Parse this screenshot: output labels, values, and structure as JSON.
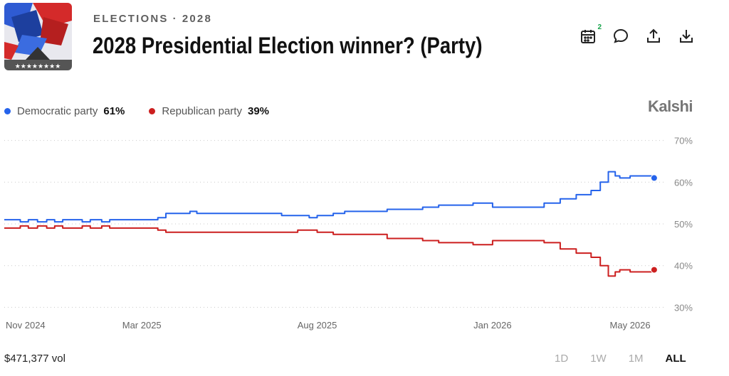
{
  "header": {
    "category": "ELECTIONS",
    "separator": "·",
    "year": "2028",
    "title": "2028 Presidential Election winner? (Party)",
    "calendar_badge": "2"
  },
  "actions": [
    {
      "icon": "calendar-icon"
    },
    {
      "icon": "comment-icon"
    },
    {
      "icon": "share-icon"
    },
    {
      "icon": "download-icon"
    }
  ],
  "brand": "Kalshi",
  "legend": [
    {
      "name": "Democratic party",
      "value": "61%",
      "color": "#2563eb"
    },
    {
      "name": "Republican party",
      "value": "39%",
      "color": "#cc1f1f"
    }
  ],
  "volume": "$471,377 vol",
  "ranges": [
    {
      "label": "1D",
      "active": false
    },
    {
      "label": "1W",
      "active": false
    },
    {
      "label": "1M",
      "active": false
    },
    {
      "label": "ALL",
      "active": true
    }
  ],
  "chart_data": {
    "type": "line",
    "xlabel": "",
    "ylabel": "",
    "xlim": [
      "2024-11-01",
      "2026-06-01"
    ],
    "ylim": [
      27,
      73
    ],
    "x_ticks": [
      {
        "label": "Nov 2024",
        "date": "2024-11-01"
      },
      {
        "label": "Mar 2025",
        "date": "2025-03-01"
      },
      {
        "label": "Aug 2025",
        "date": "2025-08-01"
      },
      {
        "label": "Jan 2026",
        "date": "2026-01-01"
      },
      {
        "label": "May 2026",
        "date": "2026-05-01"
      }
    ],
    "y_ticks": [
      {
        "label": "70%",
        "value": 70
      },
      {
        "label": "60%",
        "value": 60
      },
      {
        "label": "50%",
        "value": 50
      },
      {
        "label": "40%",
        "value": 40
      },
      {
        "label": "30%",
        "value": 30
      }
    ],
    "grid": true,
    "series": [
      {
        "name": "Democratic party",
        "color": "#2563eb",
        "points": [
          [
            "2024-11-01",
            51
          ],
          [
            "2024-11-10",
            51
          ],
          [
            "2024-11-15",
            50.5
          ],
          [
            "2024-11-22",
            51
          ],
          [
            "2024-11-30",
            50.5
          ],
          [
            "2024-12-08",
            51
          ],
          [
            "2024-12-15",
            50.5
          ],
          [
            "2024-12-22",
            51
          ],
          [
            "2024-12-31",
            51
          ],
          [
            "2025-01-08",
            50.5
          ],
          [
            "2025-01-15",
            51
          ],
          [
            "2025-01-25",
            50.5
          ],
          [
            "2025-02-01",
            51
          ],
          [
            "2025-02-15",
            51
          ],
          [
            "2025-02-28",
            51
          ],
          [
            "2025-03-08",
            51
          ],
          [
            "2025-03-15",
            51.5
          ],
          [
            "2025-03-22",
            52.5
          ],
          [
            "2025-04-08",
            52.5
          ],
          [
            "2025-04-12",
            53
          ],
          [
            "2025-04-18",
            52.5
          ],
          [
            "2025-05-10",
            52.5
          ],
          [
            "2025-06-01",
            52.5
          ],
          [
            "2025-06-15",
            52.5
          ],
          [
            "2025-07-01",
            52
          ],
          [
            "2025-07-15",
            52
          ],
          [
            "2025-07-25",
            51.5
          ],
          [
            "2025-08-01",
            52
          ],
          [
            "2025-08-15",
            52.5
          ],
          [
            "2025-08-25",
            53
          ],
          [
            "2025-09-15",
            53
          ],
          [
            "2025-10-01",
            53.5
          ],
          [
            "2025-10-15",
            53.5
          ],
          [
            "2025-11-01",
            54
          ],
          [
            "2025-11-15",
            54.5
          ],
          [
            "2025-12-01",
            54.5
          ],
          [
            "2025-12-15",
            55
          ],
          [
            "2026-01-01",
            54
          ],
          [
            "2026-01-15",
            54
          ],
          [
            "2026-02-01",
            54
          ],
          [
            "2026-02-15",
            55
          ],
          [
            "2026-03-01",
            56
          ],
          [
            "2026-03-15",
            57
          ],
          [
            "2026-03-28",
            58
          ],
          [
            "2026-04-05",
            60
          ],
          [
            "2026-04-12",
            62.5
          ],
          [
            "2026-04-18",
            61.5
          ],
          [
            "2026-04-22",
            61
          ],
          [
            "2026-05-01",
            61.5
          ],
          [
            "2026-05-10",
            61.5
          ],
          [
            "2026-05-22",
            61
          ]
        ]
      },
      {
        "name": "Republican party",
        "color": "#cc1f1f",
        "points": [
          [
            "2024-11-01",
            49
          ],
          [
            "2024-11-10",
            49
          ],
          [
            "2024-11-15",
            49.5
          ],
          [
            "2024-11-22",
            49
          ],
          [
            "2024-11-30",
            49.5
          ],
          [
            "2024-12-08",
            49
          ],
          [
            "2024-12-15",
            49.5
          ],
          [
            "2024-12-22",
            49
          ],
          [
            "2024-12-31",
            49
          ],
          [
            "2025-01-08",
            49.5
          ],
          [
            "2025-01-15",
            49
          ],
          [
            "2025-01-25",
            49.5
          ],
          [
            "2025-02-01",
            49
          ],
          [
            "2025-02-15",
            49
          ],
          [
            "2025-02-28",
            49
          ],
          [
            "2025-03-08",
            49
          ],
          [
            "2025-03-15",
            48.5
          ],
          [
            "2025-03-22",
            48
          ],
          [
            "2025-04-08",
            48
          ],
          [
            "2025-04-12",
            48
          ],
          [
            "2025-05-10",
            48
          ],
          [
            "2025-06-01",
            48
          ],
          [
            "2025-06-15",
            48
          ],
          [
            "2025-07-01",
            48
          ],
          [
            "2025-07-15",
            48.5
          ],
          [
            "2025-07-25",
            48.5
          ],
          [
            "2025-08-01",
            48
          ],
          [
            "2025-08-15",
            47.5
          ],
          [
            "2025-08-25",
            47.5
          ],
          [
            "2025-09-15",
            47.5
          ],
          [
            "2025-10-01",
            46.5
          ],
          [
            "2025-10-15",
            46.5
          ],
          [
            "2025-11-01",
            46
          ],
          [
            "2025-11-15",
            45.5
          ],
          [
            "2025-12-01",
            45.5
          ],
          [
            "2025-12-15",
            45
          ],
          [
            "2026-01-01",
            46
          ],
          [
            "2026-01-15",
            46
          ],
          [
            "2026-02-01",
            46
          ],
          [
            "2026-02-15",
            45.5
          ],
          [
            "2026-03-01",
            44
          ],
          [
            "2026-03-15",
            43
          ],
          [
            "2026-03-28",
            42
          ],
          [
            "2026-04-05",
            40
          ],
          [
            "2026-04-12",
            37.5
          ],
          [
            "2026-04-18",
            38.5
          ],
          [
            "2026-04-22",
            39
          ],
          [
            "2026-05-01",
            38.5
          ],
          [
            "2026-05-10",
            38.5
          ],
          [
            "2026-05-22",
            39
          ]
        ]
      }
    ]
  }
}
